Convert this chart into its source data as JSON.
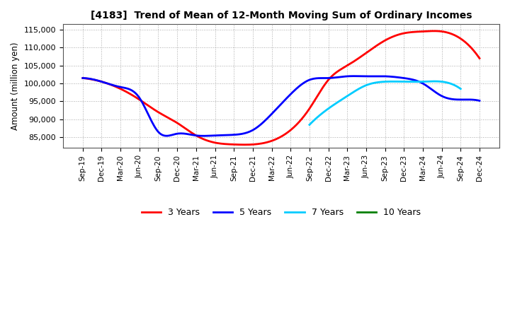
{
  "title": "[4183]  Trend of Mean of 12-Month Moving Sum of Ordinary Incomes",
  "ylabel": "Amount (million yen)",
  "ylim": [
    82000,
    116500
  ],
  "yticks": [
    85000,
    90000,
    95000,
    100000,
    105000,
    110000,
    115000
  ],
  "ytick_labels": [
    "85,000",
    "90,000",
    "95,000",
    "100,000",
    "105,000",
    "110,000",
    "115,000"
  ],
  "x_labels": [
    "Sep-19",
    "Dec-19",
    "Mar-20",
    "Jun-20",
    "Sep-20",
    "Dec-20",
    "Mar-21",
    "Jun-21",
    "Sep-21",
    "Dec-21",
    "Mar-22",
    "Jun-22",
    "Sep-22",
    "Dec-22",
    "Mar-23",
    "Jun-23",
    "Sep-23",
    "Dec-23",
    "Mar-24",
    "Jun-24",
    "Sep-24",
    "Dec-24"
  ],
  "series": {
    "3 Years": {
      "color": "#ff0000",
      "data": [
        101500,
        100500,
        98500,
        95500,
        92000,
        89000,
        85500,
        83500,
        83000,
        83000,
        84000,
        87000,
        93000,
        101000,
        105000,
        108500,
        112000,
        114000,
        114500,
        114500,
        112500,
        107000
      ]
    },
    "5 Years": {
      "color": "#0000ff",
      "data": [
        101500,
        100500,
        99000,
        96000,
        86500,
        86000,
        85500,
        85500,
        85700,
        87000,
        91500,
        97000,
        101000,
        101500,
        102000,
        102000,
        102000,
        101500,
        100000,
        96500,
        95500,
        95200
      ]
    },
    "7 Years": {
      "color": "#00ccff",
      "data": [
        null,
        null,
        null,
        null,
        null,
        null,
        null,
        null,
        null,
        null,
        null,
        null,
        88500,
        93000,
        96500,
        99500,
        100500,
        100500,
        100500,
        100500,
        98500,
        null
      ]
    },
    "10 Years": {
      "color": "#008000",
      "data": [
        null,
        null,
        null,
        null,
        null,
        null,
        null,
        null,
        null,
        null,
        null,
        null,
        null,
        null,
        null,
        null,
        null,
        null,
        null,
        null,
        null,
        null
      ]
    }
  },
  "legend_labels": [
    "3 Years",
    "5 Years",
    "7 Years",
    "10 Years"
  ],
  "legend_colors": [
    "#ff0000",
    "#0000ff",
    "#00ccff",
    "#008000"
  ],
  "background_color": "#ffffff",
  "grid_color": "#aaaaaa"
}
